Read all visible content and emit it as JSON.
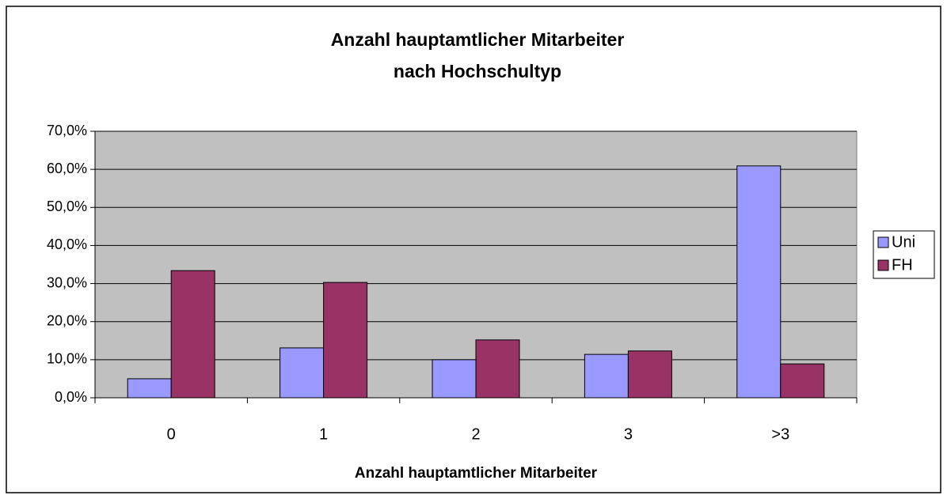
{
  "chart_data": {
    "type": "bar",
    "title": [
      "Anzahl hauptamtlicher Mitarbeiter",
      "nach Hochschultyp"
    ],
    "x_label": "Anzahl hauptamtlicher Mitarbeiter",
    "categories": [
      "0",
      "1",
      "2",
      "3",
      ">3"
    ],
    "series": [
      {
        "name": "Uni",
        "color": "#9999ff",
        "values": [
          5.0,
          13.1,
          10.0,
          11.4,
          60.9
        ]
      },
      {
        "name": "FH",
        "color": "#993366",
        "values": [
          33.4,
          30.3,
          15.2,
          12.3,
          8.9
        ]
      }
    ],
    "ylim": [
      0,
      70
    ],
    "yticks": [
      {
        "value": 0,
        "label": "0,0%"
      },
      {
        "value": 10,
        "label": "10,0%"
      },
      {
        "value": 20,
        "label": "20,0%"
      },
      {
        "value": 30,
        "label": "30,0%"
      },
      {
        "value": 40,
        "label": "40,0%"
      },
      {
        "value": 50,
        "label": "50,0%"
      },
      {
        "value": 60,
        "label": "60,0%"
      },
      {
        "value": 70,
        "label": "70,0%"
      }
    ],
    "grid": true,
    "legend": "right"
  }
}
